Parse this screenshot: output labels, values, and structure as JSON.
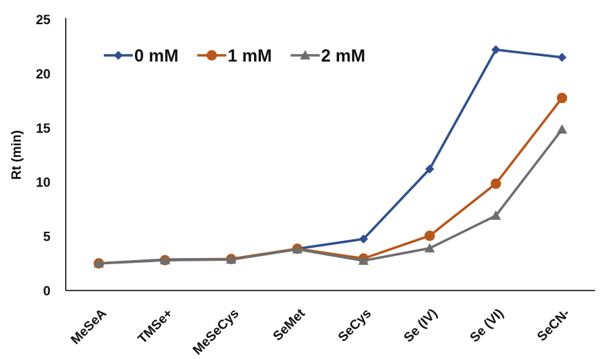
{
  "chart_data": {
    "type": "line",
    "title": "",
    "xlabel": "",
    "ylabel": "Rt (min)",
    "categories": [
      "MeSeA",
      "TMSe+",
      "MeSeCys",
      "SeMet",
      "SeCys",
      "Se (IV)",
      "Se (VI)",
      "SeCN-"
    ],
    "ylim": [
      0,
      25
    ],
    "yticks": [
      0,
      5,
      10,
      15,
      20,
      25
    ],
    "grid": false,
    "legend_position": "top-left",
    "series": [
      {
        "name": "0 mM",
        "color": "#2F4F8F",
        "marker": "diamond",
        "values": [
          2.5,
          2.85,
          2.9,
          3.85,
          4.75,
          11.2,
          22.2,
          21.5
        ]
      },
      {
        "name": "1 mM",
        "color": "#B8561B",
        "marker": "circle",
        "values": [
          2.5,
          2.8,
          2.9,
          3.85,
          2.95,
          5.05,
          9.85,
          17.75
        ]
      },
      {
        "name": "2 mM",
        "color": "#6E6E6E",
        "marker": "triangle",
        "values": [
          2.5,
          2.8,
          2.85,
          3.8,
          2.75,
          3.9,
          6.9,
          14.85
        ]
      }
    ]
  }
}
